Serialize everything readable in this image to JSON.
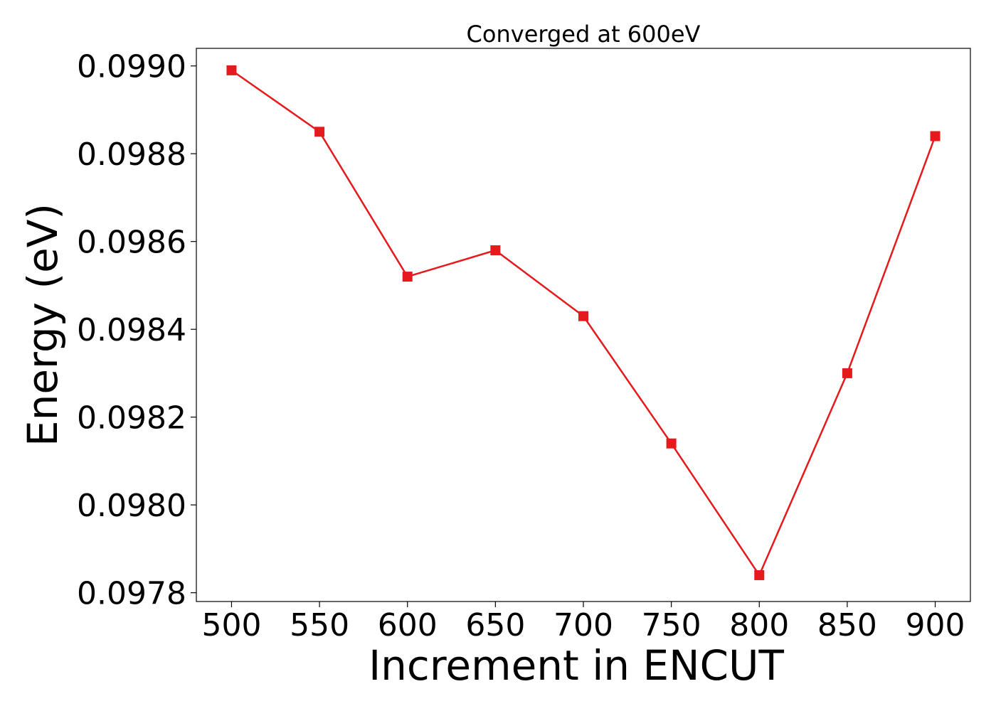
{
  "chart_data": {
    "type": "line",
    "title": "Converged at 600eV",
    "xlabel": "Increment in ENCUT",
    "ylabel": "Energy (eV)",
    "x": [
      500,
      550,
      600,
      650,
      700,
      750,
      800,
      850,
      900
    ],
    "series": [
      {
        "values": [
          0.09899,
          0.09885,
          0.09852,
          0.09858,
          0.09843,
          0.09814,
          0.09784,
          0.0983,
          0.09884
        ],
        "color": "#e41a1c",
        "marker": "square"
      }
    ],
    "xlim": [
      480,
      920
    ],
    "ylim": [
      0.09778,
      0.09904
    ],
    "x_ticks": [
      500,
      550,
      600,
      650,
      700,
      750,
      800,
      850,
      900
    ],
    "x_tick_labels": [
      "500",
      "550",
      "600",
      "650",
      "700",
      "750",
      "800",
      "850",
      "900"
    ],
    "y_ticks": [
      0.0978,
      0.098,
      0.0982,
      0.0984,
      0.0986,
      0.0988,
      0.099
    ],
    "y_tick_labels": [
      "0.0978",
      "0.0980",
      "0.0982",
      "0.0984",
      "0.0986",
      "0.0988",
      "0.0990"
    ],
    "grid": false,
    "legend": "none"
  }
}
